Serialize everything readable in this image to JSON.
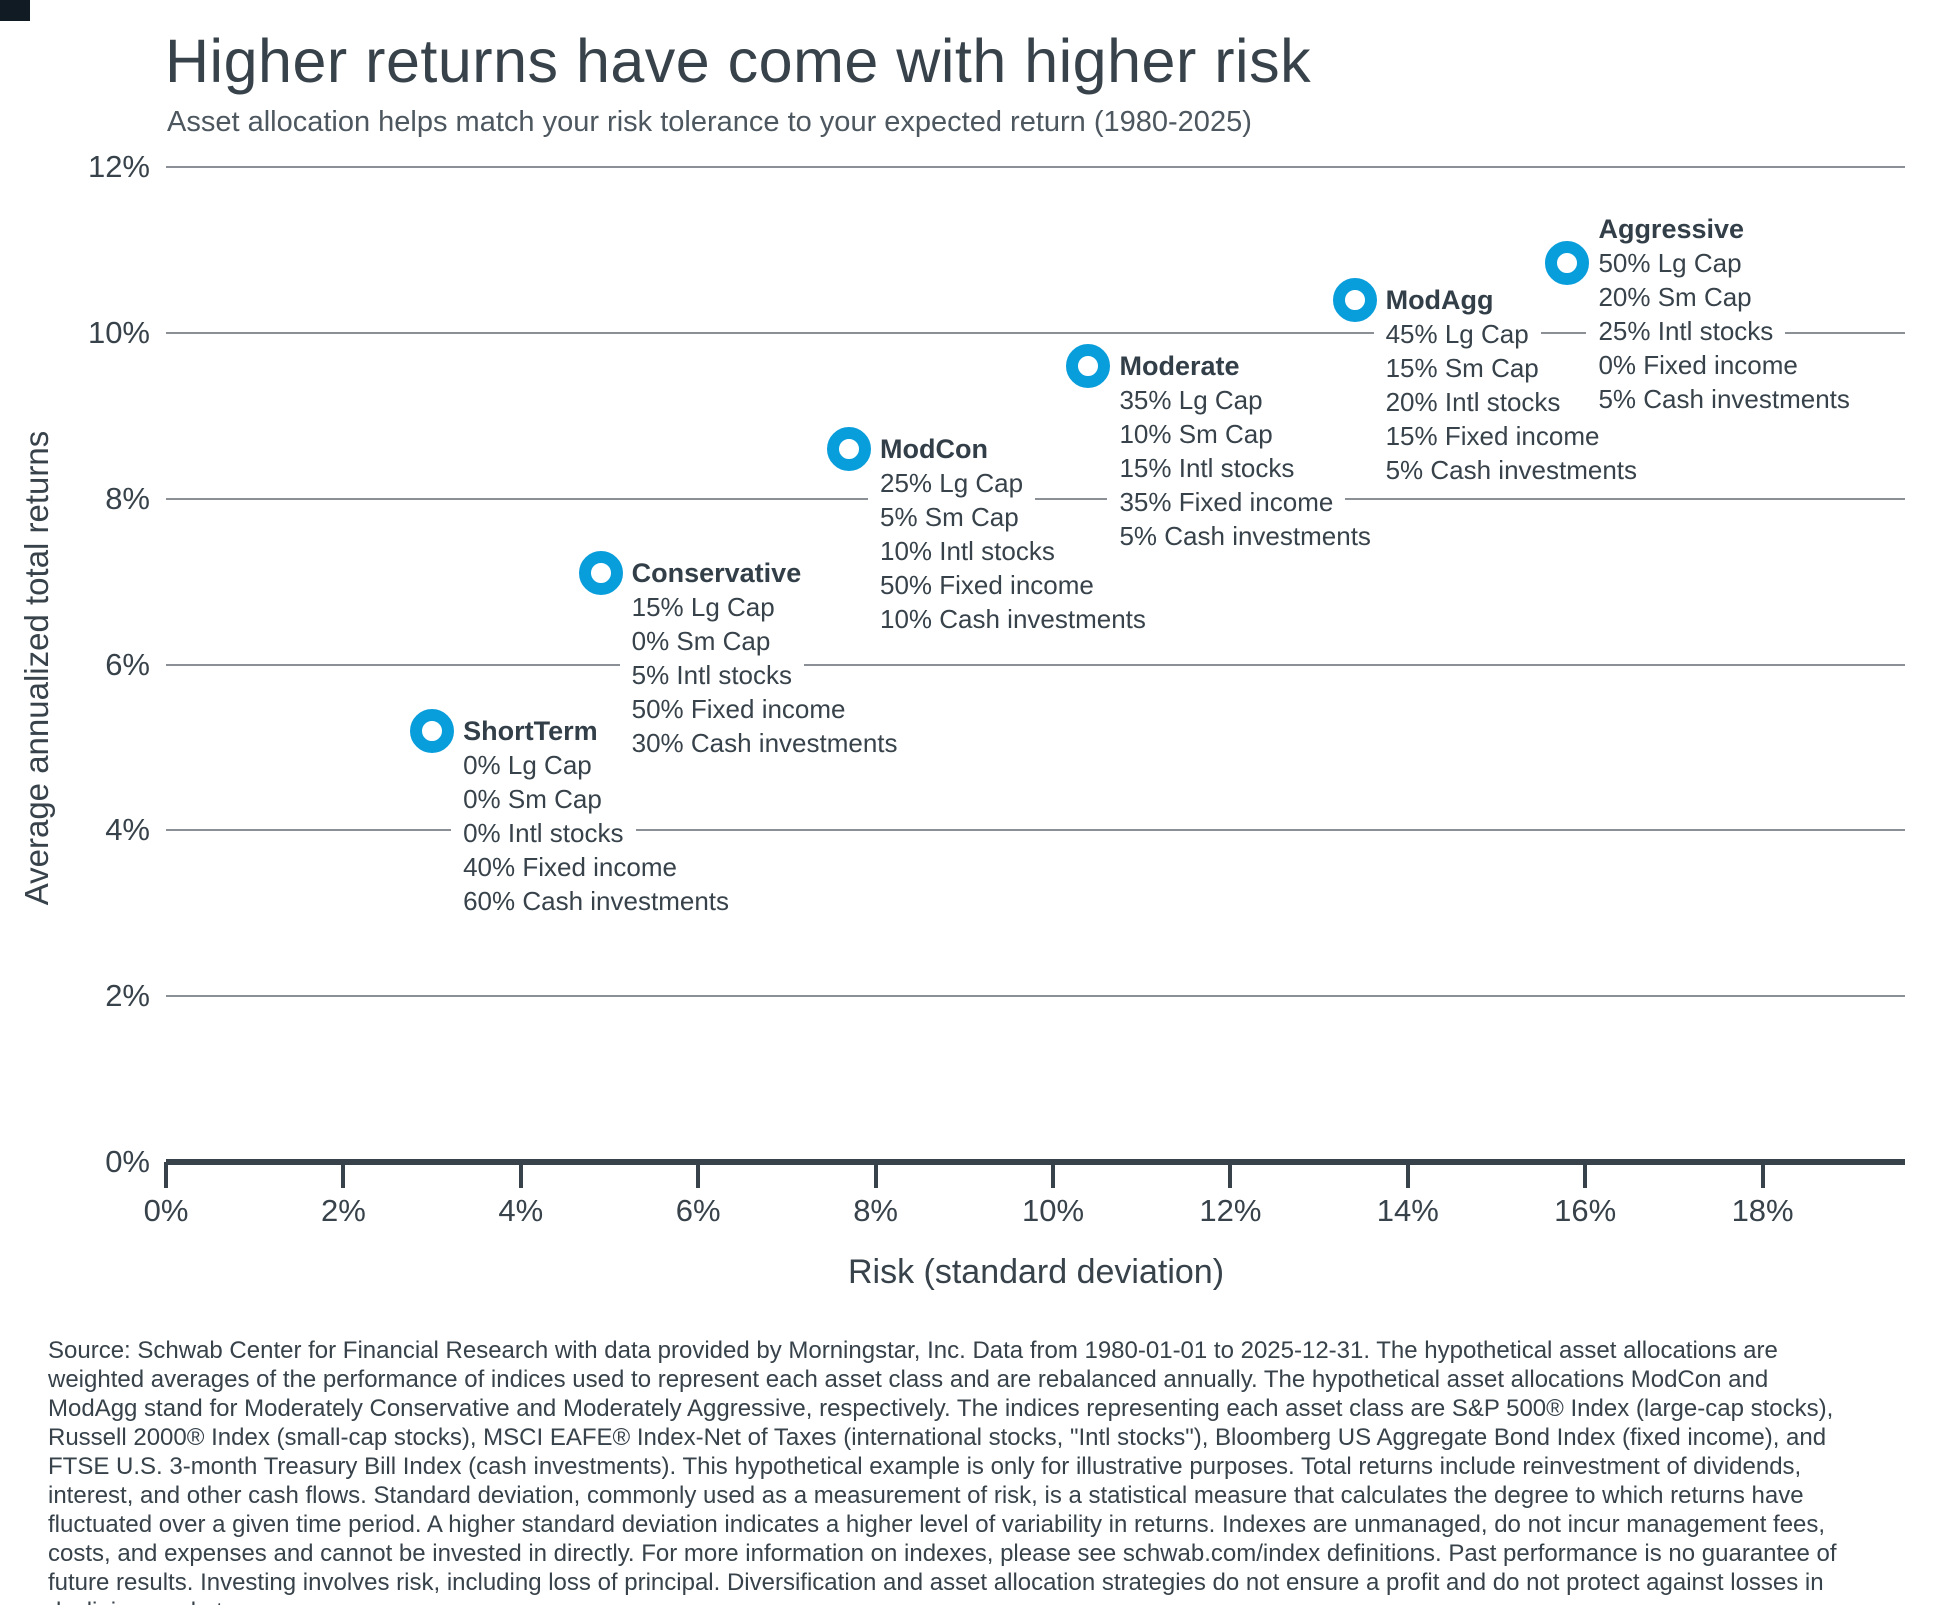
{
  "header": {
    "title": "Higher returns have come with higher risk",
    "subtitle": "Asset allocation helps match your risk tolerance to your expected return (1980-2025)"
  },
  "chart_data": {
    "type": "scatter",
    "title": "Higher returns have come with higher risk",
    "subtitle": "Asset allocation helps match your risk tolerance to your expected return (1980-2025)",
    "xlabel": "Risk (standard deviation)",
    "ylabel": "Average annualized total returns",
    "xlim": [
      0,
      19.6
    ],
    "ylim": [
      0,
      12
    ],
    "grid": "horizontal-only",
    "legend": "none",
    "marker_color": "#089DDB",
    "marker_style": "open-ring",
    "x_ticks": [
      "0%",
      "2%",
      "4%",
      "6%",
      "8%",
      "10%",
      "12%",
      "14%",
      "16%",
      "18%"
    ],
    "y_ticks": [
      "0%",
      "2%",
      "4%",
      "6%",
      "8%",
      "10%",
      "12%"
    ],
    "points": [
      {
        "name": "ShortTerm",
        "risk_pct": 3.0,
        "return_pct": 5.2,
        "title_above_marker": false,
        "allocation": [
          "0% Lg Cap",
          "0% Sm Cap",
          "0% Intl stocks",
          "40% Fixed income",
          "60% Cash investments"
        ]
      },
      {
        "name": "Conservative",
        "risk_pct": 4.9,
        "return_pct": 7.1,
        "title_above_marker": false,
        "allocation": [
          "15% Lg Cap",
          "0% Sm Cap",
          "5% Intl stocks",
          "50% Fixed income",
          "30% Cash investments"
        ]
      },
      {
        "name": "ModCon",
        "risk_pct": 7.7,
        "return_pct": 8.6,
        "title_above_marker": false,
        "allocation": [
          "25% Lg Cap",
          "5% Sm Cap",
          "10% Intl stocks",
          "50% Fixed income",
          "10% Cash investments"
        ]
      },
      {
        "name": "Moderate",
        "risk_pct": 10.4,
        "return_pct": 9.6,
        "title_above_marker": false,
        "allocation": [
          "35% Lg Cap",
          "10% Sm Cap",
          "15% Intl stocks",
          "35% Fixed income",
          "5% Cash investments"
        ]
      },
      {
        "name": "ModAgg",
        "risk_pct": 13.4,
        "return_pct": 10.4,
        "title_above_marker": false,
        "allocation": [
          "45% Lg Cap",
          "15% Sm Cap",
          "20% Intl stocks",
          "15% Fixed income",
          "5% Cash investments"
        ]
      },
      {
        "name": "Aggressive",
        "risk_pct": 15.8,
        "return_pct": 10.85,
        "title_above_marker": true,
        "allocation": [
          "50% Lg Cap",
          "20% Sm Cap",
          "25% Intl stocks",
          "0% Fixed income",
          "5% Cash investments"
        ]
      }
    ]
  },
  "footnote": "Source: Schwab Center for Financial Research with data provided by Morningstar, Inc. Data from 1980-01-01 to 2025-12-31. The hypothetical asset allocations are weighted averages of the performance of indices used to represent each asset class and are rebalanced annually. The hypothetical asset allocations ModCon and ModAgg stand for Moderately Conservative and Moderately Aggressive, respectively. The indices representing each asset class are S&P 500® Index (large-cap stocks), Russell 2000® Index (small-cap stocks), MSCI EAFE® Index-Net of Taxes (international stocks, \"Intl stocks\"), Bloomberg US Aggregate Bond Index (fixed income), and FTSE U.S. 3-month Treasury Bill Index (cash investments). This hypothetical example is only for illustrative purposes. Total returns include reinvestment of dividends, interest, and other cash flows. Standard deviation, commonly used as a measurement of risk, is a statistical measure that calculates the degree to which returns have fluctuated over a given time period. A higher standard deviation indicates a higher level of variability in returns. Indexes are unmanaged, do not incur management fees, costs, and expenses and cannot be invested in directly. For more information on indexes, please see schwab.com/index definitions. Past performance is no guarantee of future results. Investing involves risk, including loss of principal. Diversification and asset allocation strategies do not ensure a profit and do not protect against losses in declining markets."
}
